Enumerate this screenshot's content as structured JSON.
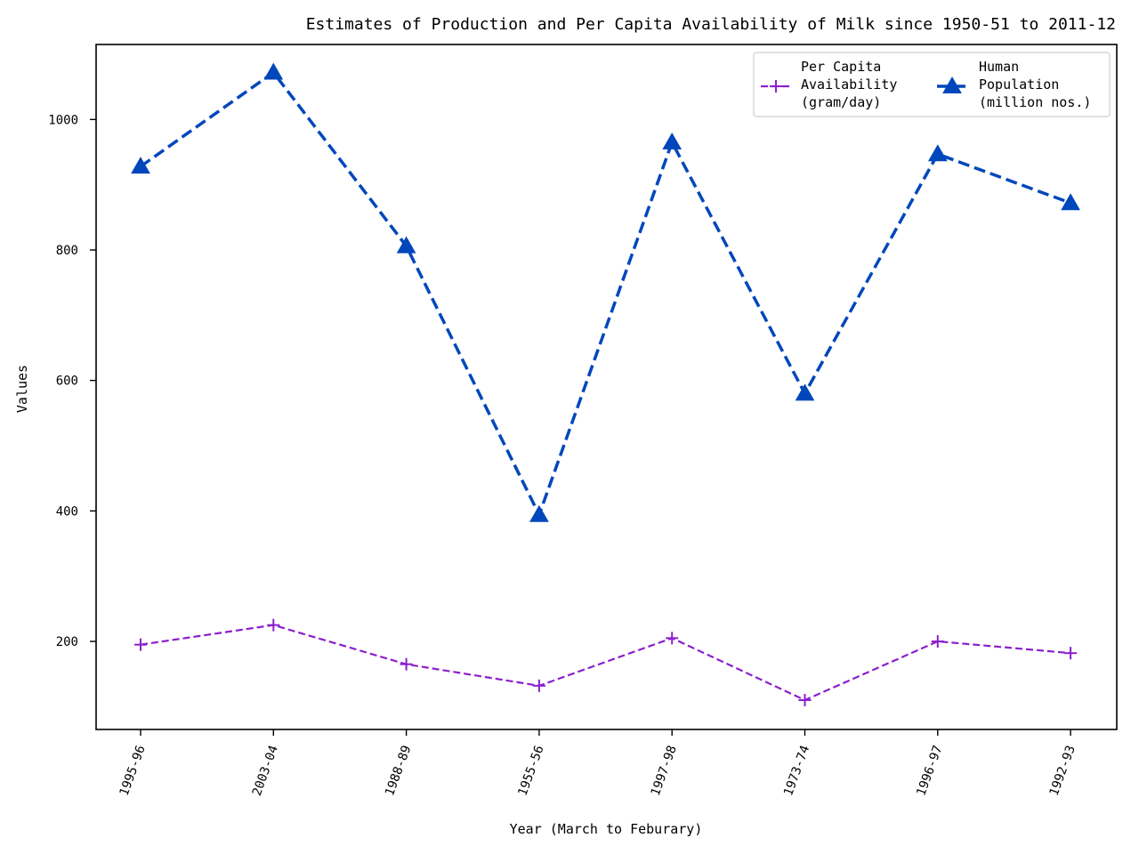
{
  "chart_data": {
    "type": "line",
    "title": "Estimates of Production and Per Capita Availability of Milk since 1950-51 to 2011-12",
    "xlabel": "Year (March to Feburary)",
    "ylabel": "Values",
    "categories": [
      "1995-96",
      "2003-04",
      "1988-89",
      "1955-56",
      "1997-98",
      "1973-74",
      "1996-97",
      "1992-93"
    ],
    "yticks": [
      200,
      400,
      600,
      800,
      1000
    ],
    "ylim": [
      65,
      1115
    ],
    "grid": false,
    "legend_position": "top-right",
    "series": [
      {
        "name": "Per Capita\nAvailability\n(gram/day)",
        "values": [
          195,
          225,
          165,
          132,
          205,
          110,
          200,
          182
        ],
        "color": "#8b1fce",
        "line_style": "dashed",
        "marker": "plus"
      },
      {
        "name": "Human\nPopulation\n(million nos.)",
        "values": [
          928,
          1072,
          806,
          394,
          965,
          580,
          947,
          872
        ],
        "color": "#0047bb",
        "line_style": "dashed",
        "marker": "triangle"
      }
    ]
  }
}
